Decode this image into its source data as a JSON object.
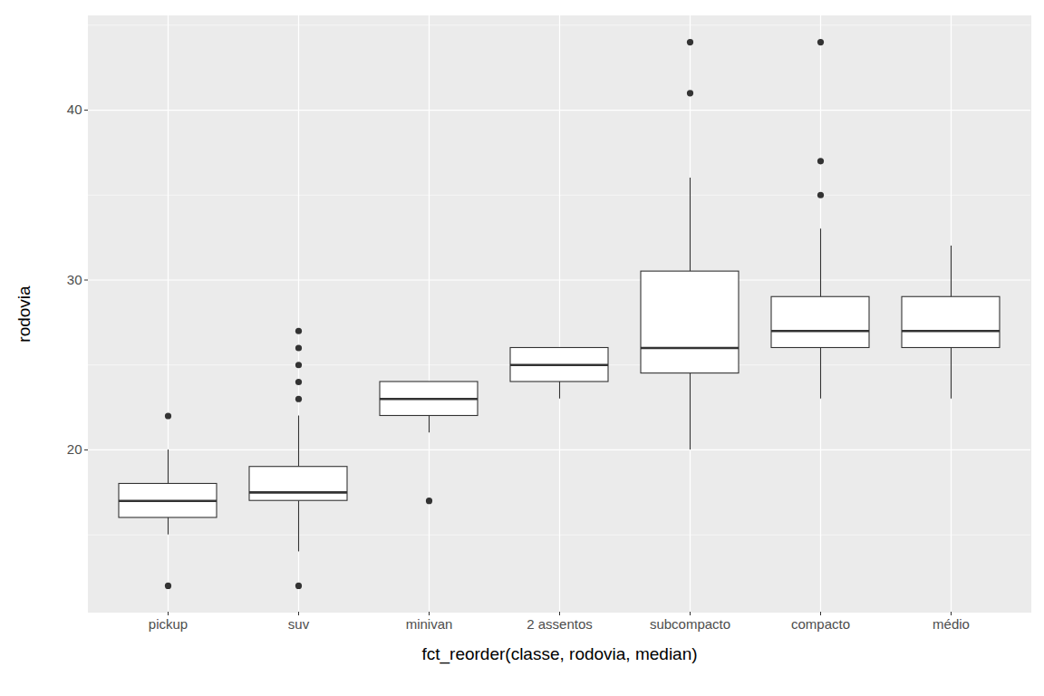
{
  "chart_data": {
    "type": "boxplot",
    "x_label": "fct_reorder(classe, rodovia, median)",
    "y_label": "rodovia",
    "categories": [
      "pickup",
      "suv",
      "minivan",
      "2 assentos",
      "subcompacto",
      "compacto",
      "médio"
    ],
    "whisker_low": [
      15,
      14,
      21,
      23,
      20,
      23,
      23
    ],
    "q1": [
      16,
      17,
      22,
      24,
      24.5,
      26,
      26
    ],
    "median": [
      17,
      17.5,
      23,
      25,
      26,
      27,
      27
    ],
    "q3": [
      18,
      19,
      24,
      26,
      30.5,
      29,
      29
    ],
    "whisker_high": [
      20,
      22,
      24,
      26,
      36,
      33,
      32
    ],
    "outliers": [
      [
        12,
        22
      ],
      [
        12,
        23,
        24,
        25,
        26,
        27
      ],
      [
        17
      ],
      [],
      [
        41,
        44
      ],
      [
        35,
        37,
        44
      ],
      []
    ],
    "ylim": [
      10.45,
      45.55
    ],
    "yticks": [
      20,
      30,
      40
    ],
    "grid": true,
    "color": "#333333"
  }
}
